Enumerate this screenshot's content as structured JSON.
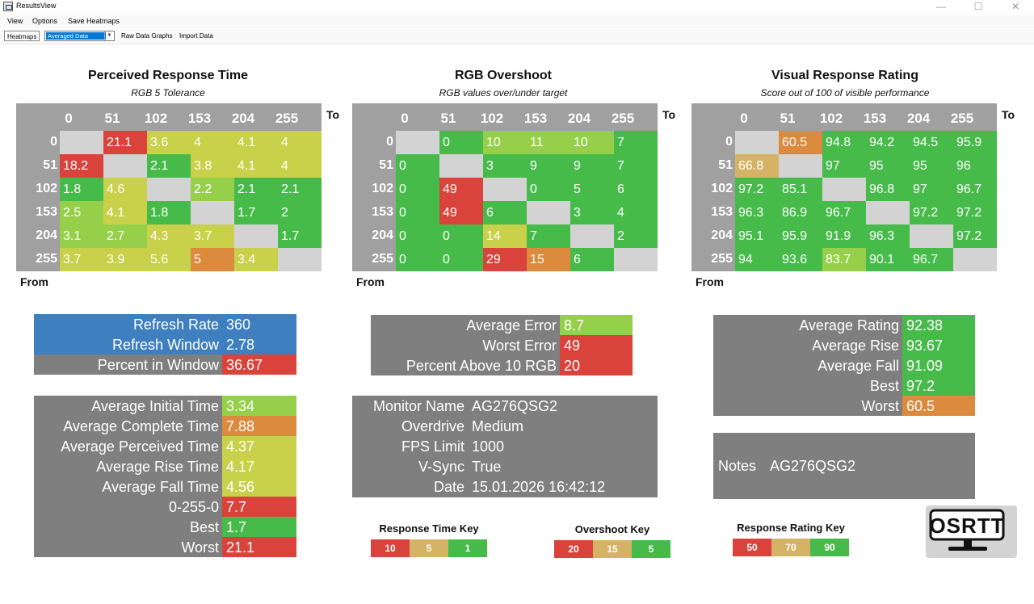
{
  "window": {
    "title": "ResultsView"
  },
  "menu": {
    "items": [
      "View",
      "Options",
      "Save Heatmaps"
    ]
  },
  "toolbar": {
    "heatmaps_label": "Heatmaps",
    "data_select_value": "Averaged Data",
    "raw_graphs_label": "Raw Data Graphs",
    "import_label": "Import Data"
  },
  "axis": {
    "to": "To",
    "from": "From",
    "levels": [
      "0",
      "51",
      "102",
      "153",
      "204",
      "255"
    ]
  },
  "colors": {
    "red": "#d9433b",
    "orange": "#dc8a3e",
    "yellow": "#c9d04a",
    "lightgreen": "#96d04a",
    "green": "#46bb4a",
    "gray_cell": "#d3d3d3",
    "header": "#a0a0a0",
    "panel": "#7f7f7f",
    "blue": "#3d7fbf",
    "key_yellow": "#d4b366"
  },
  "heatmaps": [
    {
      "title": "Perceived Response Time",
      "subtitle": "RGB 5 Tolerance",
      "rows": [
        [
          null,
          "21.1",
          "3.6",
          "4",
          "4.1",
          "4"
        ],
        [
          "18.2",
          null,
          "2.1",
          "3.8",
          "4.1",
          "4"
        ],
        [
          "1.8",
          "4.6",
          null,
          "2.2",
          "2.1",
          "2.1"
        ],
        [
          "2.5",
          "4.1",
          "1.8",
          null,
          "1.7",
          "2"
        ],
        [
          "3.1",
          "2.7",
          "4.3",
          "3.7",
          null,
          "1.7"
        ],
        [
          "3.7",
          "3.9",
          "5.6",
          "5",
          "3.4",
          null
        ]
      ],
      "colors": [
        [
          null,
          "red",
          "yellow",
          "yellow",
          "yellow",
          "yellow"
        ],
        [
          "red",
          null,
          "green",
          "yellow",
          "yellow",
          "yellow"
        ],
        [
          "green",
          "yellow",
          null,
          "lightgreen",
          "green",
          "green"
        ],
        [
          "lightgreen",
          "yellow",
          "green",
          null,
          "green",
          "green"
        ],
        [
          "lightgreen",
          "lightgreen",
          "yellow",
          "yellow",
          null,
          "green"
        ],
        [
          "yellow",
          "yellow",
          "yellow",
          "orange",
          "yellow",
          null
        ]
      ]
    },
    {
      "title": "RGB Overshoot",
      "subtitle": "RGB values over/under target",
      "rows": [
        [
          null,
          "0",
          "10",
          "11",
          "10",
          "7"
        ],
        [
          "0",
          null,
          "3",
          "9",
          "9",
          "7"
        ],
        [
          "0",
          "49",
          null,
          "0",
          "5",
          "6"
        ],
        [
          "0",
          "49",
          "6",
          null,
          "3",
          "4"
        ],
        [
          "0",
          "0",
          "14",
          "7",
          null,
          "2"
        ],
        [
          "0",
          "0",
          "29",
          "15",
          "6",
          null
        ]
      ],
      "colors": [
        [
          null,
          "green",
          "lightgreen",
          "lightgreen",
          "lightgreen",
          "green"
        ],
        [
          "green",
          null,
          "green",
          "green",
          "green",
          "green"
        ],
        [
          "green",
          "red",
          null,
          "green",
          "green",
          "green"
        ],
        [
          "green",
          "red",
          "green",
          null,
          "green",
          "green"
        ],
        [
          "green",
          "green",
          "yellow",
          "green",
          null,
          "green"
        ],
        [
          "green",
          "green",
          "red",
          "orange",
          "green",
          null
        ]
      ]
    },
    {
      "title": "Visual Response Rating",
      "subtitle": "Score out of 100 of visible performance",
      "rows": [
        [
          null,
          "60.5",
          "94.8",
          "94.2",
          "94.5",
          "95.9"
        ],
        [
          "66.8",
          null,
          "97",
          "95",
          "95",
          "96"
        ],
        [
          "97.2",
          "85.1",
          null,
          "96.8",
          "97",
          "96.7"
        ],
        [
          "96.3",
          "86.9",
          "96.7",
          null,
          "97.2",
          "97.2"
        ],
        [
          "95.1",
          "95.9",
          "91.9",
          "96.3",
          null,
          "97.2"
        ],
        [
          "94",
          "93.6",
          "83.7",
          "90.1",
          "96.7",
          null
        ]
      ],
      "colors": [
        [
          null,
          "orange",
          "green",
          "green",
          "green",
          "green"
        ],
        [
          "key_yellow",
          null,
          "green",
          "green",
          "green",
          "green"
        ],
        [
          "green",
          "green",
          null,
          "green",
          "green",
          "green"
        ],
        [
          "green",
          "green",
          "green",
          null,
          "green",
          "green"
        ],
        [
          "green",
          "green",
          "green",
          "green",
          null,
          "green"
        ],
        [
          "green",
          "green",
          "lightgreen",
          "green",
          "green",
          null
        ]
      ]
    }
  ],
  "refresh": {
    "rows": [
      {
        "label": "Refresh Rate",
        "value": "360"
      },
      {
        "label": "Refresh Window",
        "value": "2.78"
      },
      {
        "label": "Percent in Window",
        "value": "36.67"
      }
    ]
  },
  "times": {
    "rows": [
      {
        "label": "Average Initial Time",
        "value": "3.34",
        "color": "lightgreen"
      },
      {
        "label": "Average Complete Time",
        "value": "7.88",
        "color": "orange"
      },
      {
        "label": "Average Perceived Time",
        "value": "4.37",
        "color": "yellow"
      },
      {
        "label": "Average Rise Time",
        "value": "4.17",
        "color": "yellow"
      },
      {
        "label": "Average Fall Time",
        "value": "4.56",
        "color": "yellow"
      },
      {
        "label": "0-255-0",
        "value": "7.7",
        "color": "red"
      },
      {
        "label": "Best",
        "value": "1.7",
        "color": "green"
      },
      {
        "label": "Worst",
        "value": "21.1",
        "color": "red"
      }
    ]
  },
  "overshoot_stats": {
    "rows": [
      {
        "label": "Average Error",
        "value": "8.7",
        "color": "lightgreen"
      },
      {
        "label": "Worst Error",
        "value": "49",
        "color": "red"
      },
      {
        "label": "Percent Above 10 RGB",
        "value": "20",
        "color": "red"
      }
    ]
  },
  "monitor": {
    "rows": [
      {
        "label": "Monitor Name",
        "value": "AG276QSG2"
      },
      {
        "label": "Overdrive",
        "value": "Medium"
      },
      {
        "label": "FPS Limit",
        "value": "1000"
      },
      {
        "label": "V-Sync",
        "value": "True"
      },
      {
        "label": "Date",
        "value": "15.01.2026 16:42:12"
      }
    ]
  },
  "rating_stats": {
    "rows": [
      {
        "label": "Average Rating",
        "value": "92.38",
        "color": "green"
      },
      {
        "label": "Average Rise",
        "value": "93.67",
        "color": "green"
      },
      {
        "label": "Average Fall",
        "value": "91.09",
        "color": "green"
      },
      {
        "label": "Best",
        "value": "97.2",
        "color": "green"
      },
      {
        "label": "Worst",
        "value": "60.5",
        "color": "orange"
      }
    ]
  },
  "notes": {
    "label": "Notes",
    "value": "AG276QSG2"
  },
  "keys": [
    {
      "title": "Response Time Key",
      "cells": [
        {
          "value": "10",
          "color": "red"
        },
        {
          "value": "5",
          "color": "key_yellow"
        },
        {
          "value": "1",
          "color": "green"
        }
      ]
    },
    {
      "title": "Overshoot Key",
      "cells": [
        {
          "value": "20",
          "color": "red"
        },
        {
          "value": "15",
          "color": "key_yellow"
        },
        {
          "value": "5",
          "color": "green"
        }
      ]
    },
    {
      "title": "Response Rating Key",
      "cells": [
        {
          "value": "50",
          "color": "red"
        },
        {
          "value": "70",
          "color": "key_yellow"
        },
        {
          "value": "90",
          "color": "green"
        }
      ]
    }
  ],
  "logo": {
    "text": "OSRTT"
  }
}
